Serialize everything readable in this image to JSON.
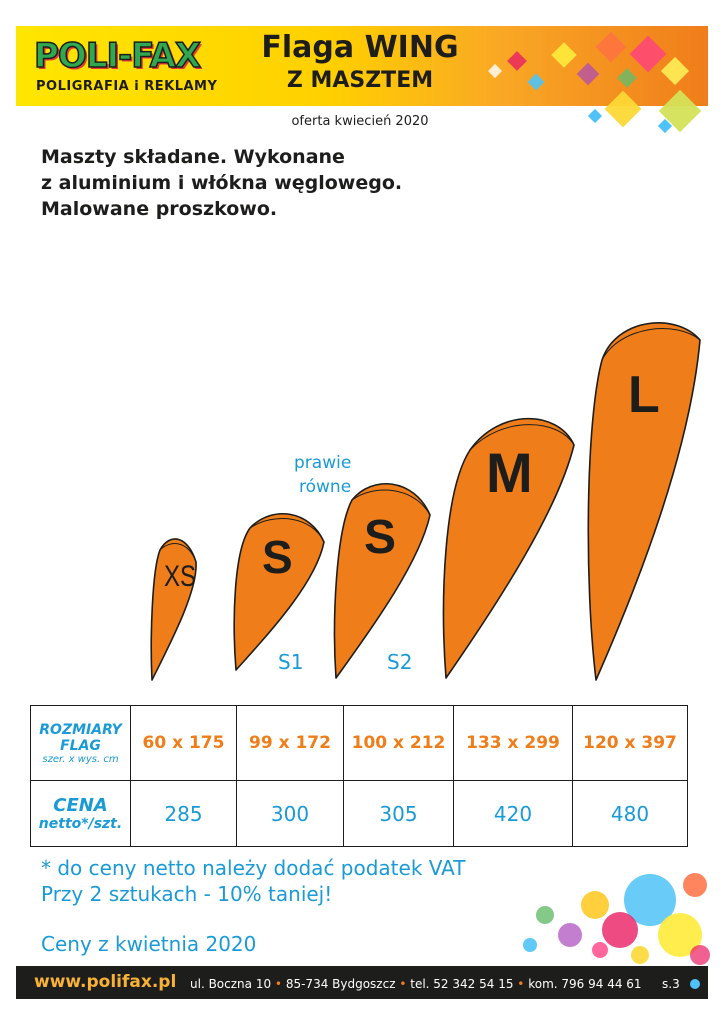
{
  "header": {
    "logo_main": "POLI-FAX",
    "logo_sub": "POLIGRAFIA i REKLAMY",
    "title": "Flaga WING",
    "subtitle": "Z MASZTEM",
    "offer": "oferta kwiecień 2020"
  },
  "intro": [
    "Maszty składane. Wykonane",
    "z aluminium i włókna węglowego.",
    "Malowane proszkowo."
  ],
  "flags": {
    "note": [
      "prawie",
      "równe"
    ],
    "items": [
      {
        "label": "XS",
        "variant": ""
      },
      {
        "label": "S",
        "variant": "S1"
      },
      {
        "label": "S",
        "variant": "S2"
      },
      {
        "label": "M",
        "variant": ""
      },
      {
        "label": "L",
        "variant": ""
      }
    ],
    "color": "#ef7d1a"
  },
  "table": {
    "row1_head": [
      "ROZMIARY",
      "FLAG",
      "szer. x wys. cm"
    ],
    "row2_head": [
      "CENA",
      "netto*/szt."
    ],
    "sizes": [
      "60 x 175",
      "99 x 172",
      "100 x 212",
      "133 x 299",
      "120 x 397"
    ],
    "prices": [
      "285",
      "300",
      "305",
      "420",
      "480"
    ]
  },
  "notes": {
    "vat": "* do ceny netto należy dodać podatek VAT",
    "discount": "Przy 2 sztukach  - 10% taniej!",
    "prices_date": "Ceny z kwietnia 2020"
  },
  "footer": {
    "url": "www.polifax.pl",
    "address": "ul. Boczna 10",
    "city": "85-734 Bydgoszcz",
    "tel": "tel. 52 342 54 15",
    "kom": "kom. 796 94 44 61",
    "page": "s.3"
  },
  "colors": {
    "orange": "#ef7d1a",
    "blue": "#1a9ad6",
    "dark": "#1d1d1b"
  }
}
